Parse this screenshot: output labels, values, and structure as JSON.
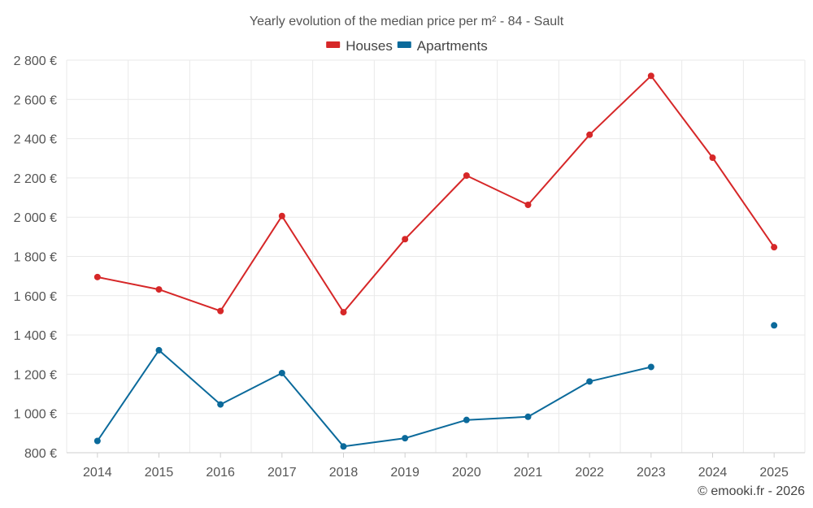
{
  "chart_data": {
    "type": "line",
    "title": "Yearly evolution of the median price per m² - 84 - Sault",
    "categories": [
      "2014",
      "2015",
      "2016",
      "2017",
      "2018",
      "2019",
      "2020",
      "2021",
      "2022",
      "2023",
      "2024",
      "2025"
    ],
    "series": [
      {
        "name": "Houses",
        "color": "#d62728",
        "values": [
          1695,
          1632,
          1522,
          2006,
          1516,
          1888,
          2212,
          2063,
          2420,
          2720,
          2303,
          1847
        ]
      },
      {
        "name": "Apartments",
        "color": "#0b6a9b",
        "values": [
          860,
          1322,
          1046,
          1206,
          832,
          874,
          967,
          983,
          1163,
          1237,
          null,
          1449
        ]
      }
    ],
    "ylim": [
      800,
      2800
    ],
    "yticks": [
      800,
      1000,
      1200,
      1400,
      1600,
      1800,
      2000,
      2200,
      2400,
      2600,
      2800
    ],
    "ytick_labels": [
      "800 €",
      "1 000 €",
      "1 200 €",
      "1 400 €",
      "1 600 €",
      "1 800 €",
      "2 000 €",
      "2 200 €",
      "2 400 €",
      "2 600 €",
      "2 800 €"
    ],
    "xlabel": "",
    "ylabel": "",
    "grid": true,
    "legend_position": "top-center"
  },
  "credit": "© emooki.fr - 2026"
}
